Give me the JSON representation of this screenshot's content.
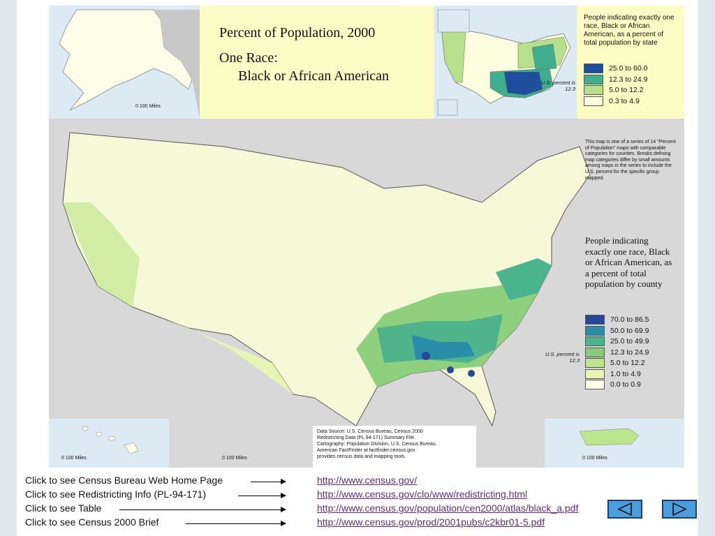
{
  "title": {
    "line1": "Percent of Population, 2000",
    "line2": "One Race:",
    "line3": "Black or African American"
  },
  "state_legend": {
    "heading": "People indicating exactly one race, Black or African American, as a percent of total population by state",
    "us_percent": "U.S. percent is 12.3",
    "items": [
      {
        "label": "25.0 to 60.0",
        "color": "#1f4e9c"
      },
      {
        "label": "12.3 to 24.9",
        "color": "#3fae8f"
      },
      {
        "label": "5.0 to 12.2",
        "color": "#b7e08a"
      },
      {
        "label": "0.3 to 4.9",
        "color": "#fdfde0"
      }
    ]
  },
  "series_note": "This map is one of a series of 14 \"Percent of Population\" maps with comparable categories for counties. Breaks defining map categories differ by small amounts among maps in the series to include the U.S. percent for the specific group mapped.",
  "county_legend": {
    "heading": "People indicating exactly one race, Black or African American, as a percent of total population by county",
    "us_percent": "U.S. percent is 12.3",
    "items": [
      {
        "label": "70.0 to 86.5",
        "color": "#24479a"
      },
      {
        "label": "50.0 to 69.9",
        "color": "#2a8ea8"
      },
      {
        "label": "25.0 to 49.9",
        "color": "#49b48e"
      },
      {
        "label": "12.3 to 24.9",
        "color": "#86cf7a"
      },
      {
        "label": "5.0 to 12.2",
        "color": "#bde58c"
      },
      {
        "label": "1.0 to 4.9",
        "color": "#e7f4b4"
      },
      {
        "label": "0.0 to 0.9",
        "color": "#fdfde8"
      }
    ]
  },
  "scales": {
    "alaska": "0   100 Miles",
    "hawaii": "0   100 Miles",
    "main": "0   100 Miles",
    "puerto_rico": "0   100 Miles"
  },
  "source_note": {
    "line1": "Data Source: U.S. Census Bureau, Census 2000",
    "line2": "Redistricting Data (PL 94-171) Summary File.",
    "line3": "Cartography: Population Division, U.S. Census Bureau.",
    "line4": "American FactFinder at factfinder.census.gov",
    "line5": "provides census data and mapping tools."
  },
  "links": [
    {
      "label": "Click to see Census Bureau Web Home Page",
      "url": "http://www.census.gov/"
    },
    {
      "label": "Click to see Redistricting Info (PL-94-171)",
      "url": "http://www.census.gov/clo/www/redistricting.html"
    },
    {
      "label": "Click to see Table",
      "url": "http://www.census.gov/population/cen2000/atlas/black_a.pdf"
    },
    {
      "label": "Click to see Census 2000 Brief",
      "url": "http://www.census.gov/prod/2001pubs/c2kbr01-5.pdf"
    }
  ],
  "nav": {
    "prev_color": "#4a9edb",
    "next_color": "#4a9edb"
  }
}
